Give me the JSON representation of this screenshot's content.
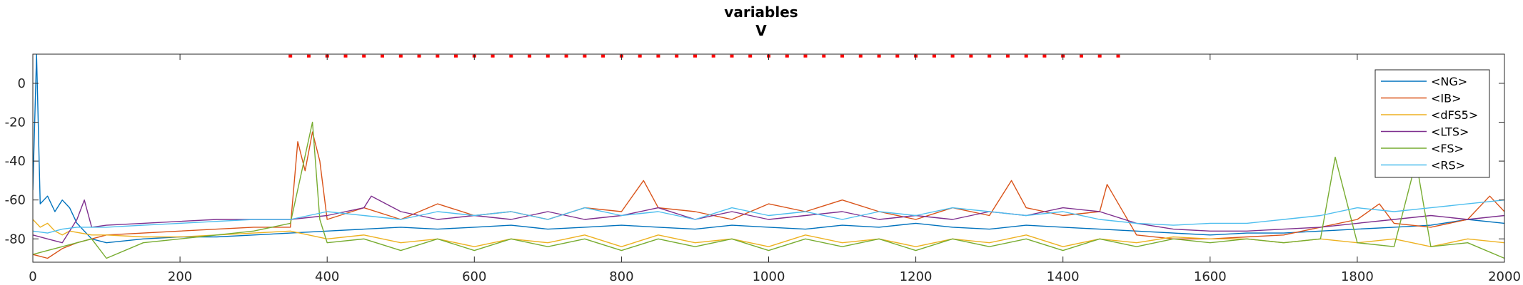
{
  "chart_data": {
    "type": "line",
    "title": "variables",
    "subtitle": "V",
    "xlabel": "",
    "ylabel": "",
    "xlim": [
      0,
      2000
    ],
    "ylim": [
      -92,
      15
    ],
    "x_ticks": [
      0,
      200,
      400,
      600,
      800,
      1000,
      1200,
      1400,
      1600,
      1800,
      2000
    ],
    "y_ticks": [
      0,
      -20,
      -40,
      -60,
      -80
    ],
    "grid": false,
    "legend_position": "top-right",
    "marker_series": {
      "color": "#ff0000",
      "y": 14,
      "x_start": 350,
      "x_end": 1480,
      "step": 25
    },
    "series": [
      {
        "name": "<NG>",
        "color": "#0072BD",
        "x": [
          0,
          5,
          10,
          20,
          30,
          40,
          50,
          60,
          80,
          100,
          150,
          200,
          250,
          300,
          350,
          400,
          450,
          500,
          550,
          600,
          650,
          700,
          750,
          800,
          850,
          900,
          950,
          1000,
          1050,
          1100,
          1150,
          1200,
          1250,
          1300,
          1350,
          1400,
          1450,
          1500,
          1550,
          1600,
          1650,
          1700,
          1750,
          1800,
          1850,
          1900,
          1950,
          2000
        ],
        "y": [
          -55,
          15,
          -62,
          -58,
          -66,
          -60,
          -64,
          -72,
          -80,
          -82,
          -80,
          -79,
          -79,
          -78,
          -77,
          -76,
          -75,
          -74,
          -75,
          -74,
          -73,
          -75,
          -74,
          -73,
          -74,
          -75,
          -73,
          -74,
          -75,
          -73,
          -74,
          -72,
          -74,
          -75,
          -73,
          -74,
          -75,
          -76,
          -77,
          -78,
          -77,
          -77,
          -76,
          -75,
          -74,
          -73,
          -70,
          -72
        ]
      },
      {
        "name": "<IB>",
        "color": "#D95319",
        "x": [
          0,
          20,
          40,
          60,
          80,
          100,
          150,
          200,
          250,
          300,
          350,
          360,
          370,
          380,
          390,
          400,
          450,
          500,
          550,
          600,
          650,
          700,
          750,
          800,
          830,
          850,
          900,
          950,
          1000,
          1050,
          1100,
          1150,
          1200,
          1250,
          1300,
          1330,
          1350,
          1400,
          1450,
          1460,
          1500,
          1550,
          1600,
          1650,
          1700,
          1750,
          1800,
          1830,
          1850,
          1900,
          1950,
          1980,
          2000
        ],
        "y": [
          -88,
          -90,
          -85,
          -82,
          -80,
          -78,
          -77,
          -76,
          -75,
          -74,
          -74,
          -30,
          -45,
          -25,
          -40,
          -70,
          -64,
          -70,
          -62,
          -68,
          -66,
          -70,
          -64,
          -66,
          -50,
          -64,
          -66,
          -70,
          -62,
          -66,
          -60,
          -66,
          -70,
          -64,
          -68,
          -50,
          -64,
          -68,
          -66,
          -52,
          -78,
          -80,
          -80,
          -79,
          -78,
          -74,
          -70,
          -62,
          -72,
          -74,
          -70,
          -58,
          -66
        ]
      },
      {
        "name": "<dFS5>",
        "color": "#EDB120",
        "x": [
          0,
          10,
          20,
          30,
          40,
          50,
          80,
          100,
          150,
          200,
          250,
          300,
          350,
          400,
          450,
          500,
          550,
          600,
          650,
          700,
          750,
          800,
          850,
          900,
          950,
          1000,
          1050,
          1100,
          1150,
          1200,
          1250,
          1300,
          1350,
          1400,
          1450,
          1500,
          1550,
          1600,
          1650,
          1700,
          1750,
          1800,
          1850,
          1900,
          1950,
          2000
        ],
        "y": [
          -70,
          -74,
          -72,
          -76,
          -78,
          -76,
          -78,
          -78,
          -79,
          -79,
          -78,
          -77,
          -76,
          -80,
          -78,
          -82,
          -80,
          -84,
          -80,
          -82,
          -78,
          -84,
          -78,
          -82,
          -80,
          -84,
          -78,
          -82,
          -80,
          -84,
          -80,
          -82,
          -78,
          -84,
          -80,
          -82,
          -79,
          -80,
          -80,
          -82,
          -80,
          -82,
          -80,
          -84,
          -80,
          -82
        ]
      },
      {
        "name": "<LTS>",
        "color": "#7E2F8E",
        "x": [
          0,
          20,
          40,
          60,
          70,
          80,
          100,
          150,
          200,
          250,
          300,
          350,
          400,
          450,
          460,
          500,
          550,
          600,
          650,
          700,
          750,
          800,
          850,
          900,
          950,
          1000,
          1050,
          1100,
          1150,
          1200,
          1250,
          1300,
          1350,
          1400,
          1450,
          1500,
          1550,
          1600,
          1650,
          1700,
          1750,
          1800,
          1850,
          1900,
          1950,
          2000
        ],
        "y": [
          -78,
          -80,
          -82,
          -70,
          -60,
          -74,
          -73,
          -72,
          -71,
          -70,
          -70,
          -70,
          -68,
          -64,
          -58,
          -66,
          -70,
          -68,
          -70,
          -66,
          -70,
          -68,
          -64,
          -70,
          -66,
          -70,
          -68,
          -66,
          -70,
          -68,
          -70,
          -66,
          -68,
          -64,
          -66,
          -72,
          -75,
          -76,
          -76,
          -75,
          -74,
          -72,
          -70,
          -68,
          -70,
          -68
        ]
      },
      {
        "name": "<FS>",
        "color": "#77AC30",
        "x": [
          0,
          20,
          40,
          60,
          80,
          100,
          150,
          200,
          250,
          300,
          350,
          380,
          390,
          400,
          450,
          500,
          550,
          600,
          650,
          700,
          750,
          800,
          850,
          900,
          950,
          1000,
          1050,
          1100,
          1150,
          1200,
          1250,
          1300,
          1350,
          1400,
          1450,
          1500,
          1550,
          1600,
          1650,
          1700,
          1750,
          1770,
          1800,
          1850,
          1880,
          1900,
          1950,
          2000
        ],
        "y": [
          -88,
          -86,
          -84,
          -82,
          -80,
          -90,
          -82,
          -80,
          -78,
          -76,
          -72,
          -20,
          -70,
          -82,
          -80,
          -86,
          -80,
          -86,
          -80,
          -84,
          -80,
          -86,
          -80,
          -84,
          -80,
          -86,
          -80,
          -84,
          -80,
          -86,
          -80,
          -84,
          -80,
          -86,
          -80,
          -84,
          -80,
          -82,
          -80,
          -82,
          -80,
          -38,
          -82,
          -84,
          -40,
          -84,
          -82,
          -90
        ]
      },
      {
        "name": "<RS>",
        "color": "#4DBEEE",
        "x": [
          0,
          20,
          40,
          60,
          80,
          100,
          150,
          200,
          250,
          300,
          350,
          400,
          450,
          500,
          550,
          600,
          650,
          700,
          750,
          800,
          850,
          900,
          950,
          1000,
          1050,
          1100,
          1150,
          1200,
          1250,
          1300,
          1350,
          1400,
          1450,
          1500,
          1550,
          1600,
          1650,
          1700,
          1750,
          1800,
          1850,
          1900,
          1950,
          2000
        ],
        "y": [
          -76,
          -77,
          -75,
          -74,
          -74,
          -74,
          -73,
          -72,
          -71,
          -70,
          -70,
          -66,
          -68,
          -70,
          -66,
          -68,
          -66,
          -70,
          -64,
          -68,
          -66,
          -70,
          -64,
          -68,
          -66,
          -70,
          -66,
          -68,
          -64,
          -66,
          -68,
          -66,
          -70,
          -72,
          -73,
          -72,
          -72,
          -70,
          -68,
          -64,
          -66,
          -64,
          -62,
          -60
        ]
      }
    ]
  }
}
